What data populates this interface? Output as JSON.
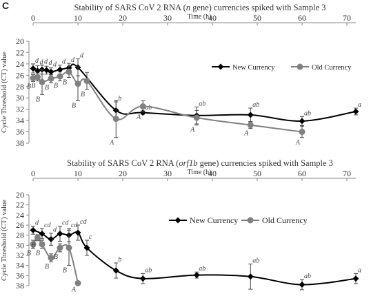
{
  "panel_label": "C",
  "chart_data": [
    {
      "type": "line",
      "title": "Stability of SARS CoV 2 RNA (n gene) currencies spiked with Sample 3",
      "title_parts": [
        {
          "text": "Stability of SARS CoV 2 RNA (",
          "italic": false
        },
        {
          "text": "n",
          "italic": true
        },
        {
          "text": " gene) currencies spiked with Sample 3",
          "italic": false
        }
      ],
      "xlabel": "Time (h)",
      "ylabel": "Cycle Threshold (CT) value",
      "xlim": [
        0,
        72
      ],
      "ylim": [
        20,
        38
      ],
      "y_reversed": true,
      "x_ticks": [
        0,
        10,
        20,
        30,
        40,
        50,
        60,
        70
      ],
      "y_ticks": [
        20,
        22,
        24,
        26,
        28,
        30,
        32,
        34,
        36,
        38
      ],
      "x_axis_position": "top",
      "grid": false,
      "legend_position": "center-right",
      "series": [
        {
          "name": "New Currency",
          "color": "#000000",
          "marker": "diamond",
          "x": [
            0,
            1,
            2,
            3,
            4,
            6,
            8,
            10,
            18.5,
            24.5,
            36.5,
            48.5,
            60,
            72
          ],
          "y": [
            24.8,
            25.2,
            25.0,
            25.1,
            25.4,
            25.0,
            24.7,
            24.6,
            32.2,
            32.6,
            33.1,
            33.0,
            34.1,
            32.4
          ],
          "err": [
            0.8,
            0.9,
            0.8,
            0.7,
            0.7,
            0.8,
            0.8,
            1.5,
            1.5,
            0.3,
            1.5,
            1.2,
            0.8,
            0.6
          ],
          "labels": [
            "d",
            "d",
            "d",
            "d",
            "d",
            "d",
            "d",
            "d",
            "b",
            "ab",
            "ab",
            "ab",
            "ab",
            "a"
          ]
        },
        {
          "name": "Old Currency",
          "color": "#808080",
          "marker": "circle",
          "x": [
            0,
            1,
            2,
            4,
            6,
            8,
            10,
            12,
            18.5,
            24.5,
            36.5,
            48.5,
            60
          ],
          "y": [
            26.5,
            26.3,
            27.2,
            26.6,
            26.2,
            25.4,
            27.5,
            27.0,
            33.7,
            31.5,
            33.5,
            34.8,
            36.0
          ],
          "err": [
            0.6,
            0.7,
            2.2,
            0.7,
            0.8,
            1.0,
            3.0,
            1.5,
            3.3,
            1.0,
            1.3,
            0.6,
            1.0
          ],
          "labels": [
            "B",
            "B",
            "B",
            "B",
            "B",
            "B",
            "B",
            "B",
            "A",
            "A",
            "A",
            "A",
            "A"
          ]
        }
      ]
    },
    {
      "type": "line",
      "title": "Stability of SARS CoV 2 RNA (orf1b gene) currencies spiked with Sample 3",
      "title_parts": [
        {
          "text": "Stability of SARS CoV 2 RNA (",
          "italic": false
        },
        {
          "text": "orf1b",
          "italic": true
        },
        {
          "text": " gene) currencies spiked with Sample 3",
          "italic": false
        }
      ],
      "xlabel": "Time (h)",
      "ylabel": "Cycle Threshold (CT) value",
      "xlim": [
        0,
        72
      ],
      "ylim": [
        20,
        38
      ],
      "y_reversed": true,
      "x_ticks": [
        0,
        10,
        20,
        30,
        40,
        50,
        60,
        70
      ],
      "y_ticks": [
        20,
        22,
        24,
        26,
        28,
        30,
        32,
        34,
        36,
        38
      ],
      "x_axis_position": "top",
      "grid": false,
      "legend_position": "center-right",
      "series": [
        {
          "name": "New Currency",
          "color": "#000000",
          "marker": "diamond",
          "x": [
            0,
            2,
            4,
            6,
            8,
            10,
            12,
            18.5,
            24.5,
            36.5,
            48.5,
            60,
            72
          ],
          "y": [
            27.0,
            27.7,
            28.8,
            27.7,
            28.0,
            27.5,
            30.5,
            35.0,
            36.6,
            35.9,
            36.2,
            37.8,
            36.6
          ],
          "err": [
            0.8,
            1.0,
            1.2,
            1.5,
            1.3,
            1.5,
            1.5,
            1.5,
            1.0,
            0.6,
            2.5,
            1.0,
            1.0
          ],
          "labels": [
            "d",
            "cd",
            "d",
            "cd",
            "cd",
            "cd",
            "c",
            "b",
            "ab",
            "ab",
            "ab",
            "ab",
            "a"
          ]
        },
        {
          "name": "Old Currency",
          "color": "#808080",
          "marker": "circle",
          "x": [
            0,
            1,
            2,
            4,
            6,
            8,
            10
          ],
          "y": [
            29.8,
            28.5,
            29.8,
            32.5,
            30.5,
            30.5,
            37.5
          ],
          "err": [
            0.8,
            0.6,
            0.8,
            0.8,
            0.8,
            3.5,
            0.3
          ],
          "labels": [
            "B",
            "B",
            "B",
            "B",
            "B",
            "B",
            "A"
          ]
        }
      ]
    }
  ]
}
